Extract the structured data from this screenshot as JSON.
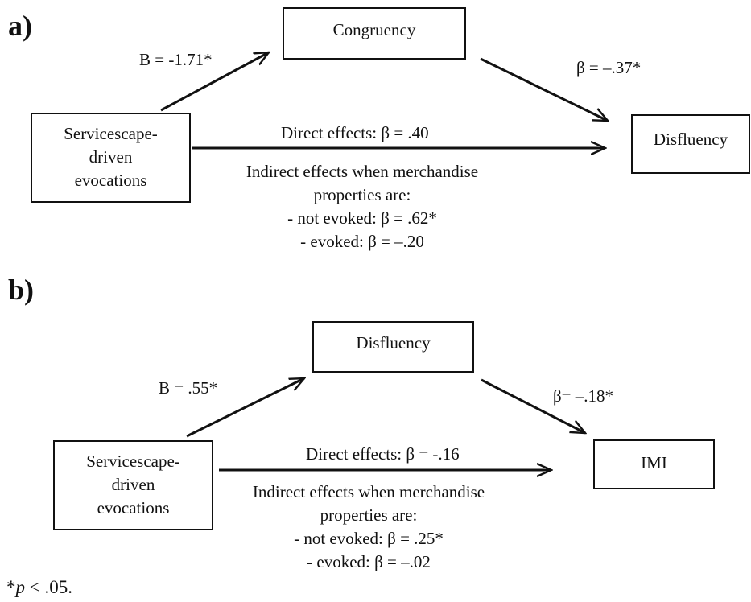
{
  "panel_a": {
    "label": "a)",
    "mediator": "Congruency",
    "outcome": "Disfluency",
    "predictor_lines": [
      "Servicescape-",
      "driven",
      "evocations"
    ],
    "path_a": "B = -1.71*",
    "path_b": "β = –.37*",
    "direct": "Direct effects: β = .40",
    "indirect_lines": [
      "Indirect effects when merchandise",
      "properties are:",
      "- not evoked: β = .62*",
      "- evoked: β = –.20"
    ]
  },
  "panel_b": {
    "label": "b)",
    "mediator": "Disfluency",
    "outcome": "IMI",
    "predictor_lines": [
      "Servicescape-",
      "driven",
      "evocations"
    ],
    "path_a": "B = .55*",
    "path_b": "β= –.18*",
    "direct": "Direct effects: β = -.16",
    "indirect_lines": [
      "Indirect effects when merchandise",
      "properties are:",
      "- not evoked: β = .25*",
      "- evoked: β = –.02"
    ]
  },
  "footnote": {
    "star": "*",
    "p_symbol": "p",
    "rest": " < .05."
  }
}
